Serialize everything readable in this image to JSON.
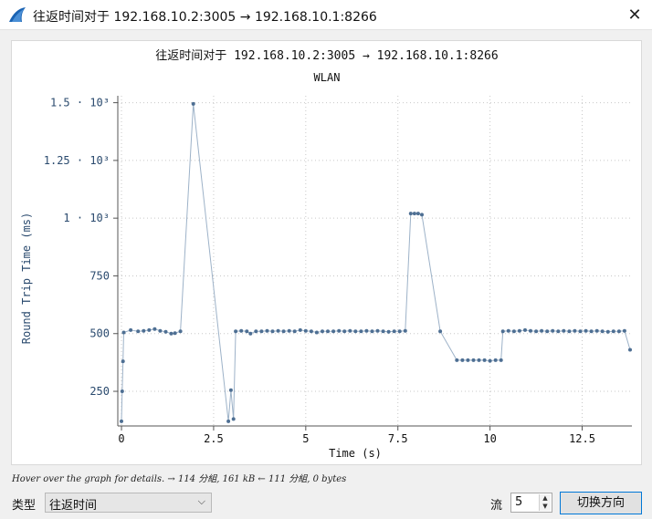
{
  "window": {
    "title": "往返时间对于 192.168.10.2:3005 → 192.168.10.1:8266",
    "close_glyph": "✕"
  },
  "icons": {
    "app": "shark-fin-icon",
    "close": "close-icon",
    "dropdown": "chevron-down-icon",
    "spin_up": "spin-up-icon",
    "spin_down": "spin-down-icon"
  },
  "chart_data": {
    "type": "scatter",
    "title": "往返时间对于 192.168.10.2:3005 → 192.168.10.1:8266",
    "subtitle": "WLAN",
    "xlabel": "Time (s)",
    "ylabel": "Round Trip Time (ms)",
    "xlim": [
      -0.1,
      13.85
    ],
    "ylim": [
      100,
      1530
    ],
    "x_ticks": [
      0,
      2.5,
      5,
      7.5,
      10,
      12.5
    ],
    "x_tick_labels": [
      "0",
      "2.5",
      "5",
      "7.5",
      "10",
      "12.5"
    ],
    "y_ticks": [
      250,
      500,
      750,
      1000,
      1250,
      1500
    ],
    "y_tick_labels": [
      "250",
      "500",
      "750",
      "1 · 10³",
      "1.25 · 10³",
      "1.5 · 10³"
    ],
    "grid": true,
    "series_color": "#4e6f93",
    "line_color": "#9db2c8",
    "points": [
      [
        0.0,
        120
      ],
      [
        0.02,
        250
      ],
      [
        0.04,
        380
      ],
      [
        0.06,
        505
      ],
      [
        0.25,
        515
      ],
      [
        0.45,
        510
      ],
      [
        0.6,
        512
      ],
      [
        0.75,
        515
      ],
      [
        0.9,
        520
      ],
      [
        1.05,
        512
      ],
      [
        1.2,
        508
      ],
      [
        1.35,
        500
      ],
      [
        1.45,
        502
      ],
      [
        1.6,
        510
      ],
      [
        1.95,
        1495
      ],
      [
        2.9,
        120
      ],
      [
        2.97,
        255
      ],
      [
        3.04,
        130
      ],
      [
        3.1,
        510
      ],
      [
        3.25,
        512
      ],
      [
        3.4,
        510
      ],
      [
        3.5,
        500
      ],
      [
        3.65,
        510
      ],
      [
        3.8,
        510
      ],
      [
        3.95,
        512
      ],
      [
        4.1,
        510
      ],
      [
        4.25,
        512
      ],
      [
        4.4,
        510
      ],
      [
        4.55,
        512
      ],
      [
        4.7,
        510
      ],
      [
        4.85,
        515
      ],
      [
        5.0,
        512
      ],
      [
        5.15,
        510
      ],
      [
        5.3,
        505
      ],
      [
        5.45,
        510
      ],
      [
        5.6,
        510
      ],
      [
        5.75,
        510
      ],
      [
        5.9,
        512
      ],
      [
        6.05,
        510
      ],
      [
        6.2,
        512
      ],
      [
        6.35,
        510
      ],
      [
        6.5,
        510
      ],
      [
        6.65,
        512
      ],
      [
        6.8,
        510
      ],
      [
        6.95,
        512
      ],
      [
        7.1,
        510
      ],
      [
        7.25,
        508
      ],
      [
        7.4,
        510
      ],
      [
        7.55,
        510
      ],
      [
        7.7,
        512
      ],
      [
        7.85,
        1020
      ],
      [
        7.95,
        1020
      ],
      [
        8.05,
        1020
      ],
      [
        8.15,
        1015
      ],
      [
        8.65,
        510
      ],
      [
        9.1,
        385
      ],
      [
        9.25,
        385
      ],
      [
        9.4,
        385
      ],
      [
        9.55,
        385
      ],
      [
        9.7,
        385
      ],
      [
        9.85,
        385
      ],
      [
        10.0,
        382
      ],
      [
        10.15,
        385
      ],
      [
        10.3,
        385
      ],
      [
        10.35,
        510
      ],
      [
        10.5,
        512
      ],
      [
        10.65,
        510
      ],
      [
        10.8,
        512
      ],
      [
        10.95,
        515
      ],
      [
        11.1,
        512
      ],
      [
        11.25,
        510
      ],
      [
        11.4,
        512
      ],
      [
        11.55,
        510
      ],
      [
        11.7,
        512
      ],
      [
        11.85,
        510
      ],
      [
        12.0,
        512
      ],
      [
        12.15,
        510
      ],
      [
        12.3,
        512
      ],
      [
        12.45,
        510
      ],
      [
        12.6,
        512
      ],
      [
        12.75,
        510
      ],
      [
        12.9,
        512
      ],
      [
        13.05,
        510
      ],
      [
        13.2,
        508
      ],
      [
        13.35,
        510
      ],
      [
        13.5,
        510
      ],
      [
        13.65,
        512
      ],
      [
        13.8,
        430
      ]
    ]
  },
  "hint": "Hover over the graph for details. → 114 分組, 161 kB ← 111 分組, 0 bytes",
  "controls": {
    "type_label": "类型",
    "type_value": "往返时间",
    "stream_label": "流",
    "stream_value": "5",
    "switch_label": "切换方向"
  }
}
